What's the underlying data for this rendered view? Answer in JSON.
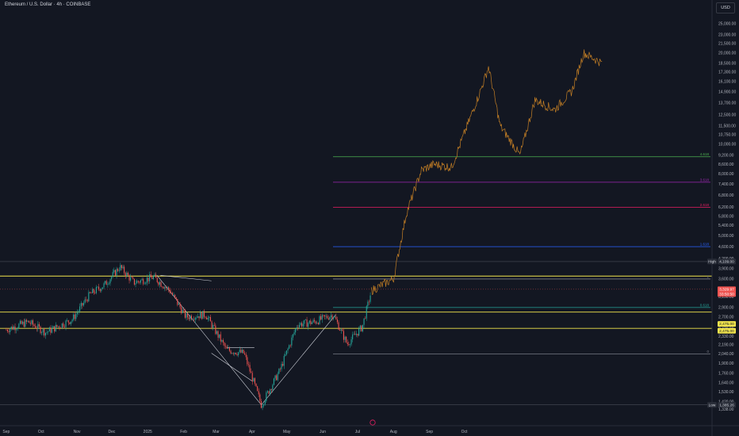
{
  "header": {
    "symbol": "Ethereum / U.S. Dollar · 4h · COINBASE",
    "currency": "USD"
  },
  "colors": {
    "background": "#131722",
    "up": "#26a69a",
    "down": "#ef5350",
    "projection": "#c47f25",
    "trend_line": "#d1d4dc",
    "horizontal": "#f2e54d"
  },
  "chart_data": {
    "type": "candlestick",
    "title": "Ethereum / U.S. Dollar · 4h · COINBASE",
    "y_scale": "log",
    "ylim": [
      1310,
      26500
    ],
    "y_ticks": [
      "25,000.00",
      "23,000.00",
      "21,500.00",
      "20,000.00",
      "18,500.00",
      "17,300.00",
      "16,100.00",
      "14,900.00",
      "13,700.00",
      "12,500.00",
      "11,500.00",
      "10,750.00",
      "10,000.00",
      "9,200.00",
      "8,600.00",
      "8,000.00",
      "7,400.00",
      "6,800.00",
      "6,200.00",
      "5,800.00",
      "5,400.00",
      "5,000.00",
      "4,600.00",
      "4,200.00",
      "3,900.00",
      "3,600.00",
      "3,350.00",
      "3,150.00",
      "2,900.00",
      "2,700.00",
      "2,470.00",
      "2,330.00",
      "2,190.00",
      "2,040.00",
      "1,900.00",
      "1,760.00",
      "1,640.00",
      "1,530.00",
      "1,420.00",
      "1,338.00"
    ],
    "x_ticks": [
      "Sep",
      "Oct",
      "Nov",
      "Dec",
      "2025",
      "Feb",
      "Mar",
      "Apr",
      "May",
      "Jun",
      "Jul",
      "Aug",
      "Sep",
      "Oct"
    ],
    "price_path_keypoints": [
      {
        "date": "2024-09-01",
        "price": 2450
      },
      {
        "date": "2024-09-20",
        "price": 2600
      },
      {
        "date": "2024-10-05",
        "price": 2400
      },
      {
        "date": "2024-10-28",
        "price": 2650
      },
      {
        "date": "2024-11-12",
        "price": 3200
      },
      {
        "date": "2024-11-25",
        "price": 3450
      },
      {
        "date": "2024-12-08",
        "price": 3950
      },
      {
        "date": "2024-12-20",
        "price": 3500
      },
      {
        "date": "2025-01-06",
        "price": 3650
      },
      {
        "date": "2025-01-20",
        "price": 3300
      },
      {
        "date": "2025-02-03",
        "price": 2700
      },
      {
        "date": "2025-02-20",
        "price": 2750
      },
      {
        "date": "2025-03-10",
        "price": 2100
      },
      {
        "date": "2025-03-25",
        "price": 2050
      },
      {
        "date": "2025-04-09",
        "price": 1385
      },
      {
        "date": "2025-04-25",
        "price": 1800
      },
      {
        "date": "2025-05-10",
        "price": 2550
      },
      {
        "date": "2025-05-25",
        "price": 2600
      },
      {
        "date": "2025-06-10",
        "price": 2750
      },
      {
        "date": "2025-06-22",
        "price": 2200
      },
      {
        "date": "2025-07-05",
        "price": 2500
      },
      {
        "date": "2025-07-13",
        "price": 3300
      }
    ],
    "projection_keypoints": [
      {
        "date": "2025-07-13",
        "price": 3300
      },
      {
        "date": "2025-08-01",
        "price": 3600
      },
      {
        "date": "2025-08-12",
        "price": 5900
      },
      {
        "date": "2025-08-25",
        "price": 8200
      },
      {
        "date": "2025-09-05",
        "price": 8600
      },
      {
        "date": "2025-09-20",
        "price": 8400
      },
      {
        "date": "2025-10-15",
        "price": 15000
      },
      {
        "date": "2025-10-22",
        "price": 18000
      },
      {
        "date": "2025-11-01",
        "price": 11500
      },
      {
        "date": "2025-11-12",
        "price": 10000
      },
      {
        "date": "2025-11-18",
        "price": 9200
      },
      {
        "date": "2025-12-01",
        "price": 14000
      },
      {
        "date": "2025-12-18",
        "price": 13000
      },
      {
        "date": "2026-01-02",
        "price": 15000
      },
      {
        "date": "2026-01-12",
        "price": 20000
      },
      {
        "date": "2026-01-28",
        "price": 18500
      }
    ],
    "fibonacci": [
      {
        "level": "0",
        "price": 2040
      },
      {
        "level": "0.618",
        "price": 2900
      },
      {
        "level": "1",
        "price": 3600
      },
      {
        "level": "1.618",
        "price": 4600
      },
      {
        "level": "2.618",
        "price": 6200
      },
      {
        "level": "3.618",
        "price": 7500
      },
      {
        "level": "4.618",
        "price": 9100
      }
    ],
    "horizontal_lines": [
      3680,
      2800,
      2475
    ],
    "price_labels": [
      {
        "name": "high",
        "text": "High",
        "value": "4,109.00"
      },
      {
        "name": "current",
        "value": "3,329.97",
        "sub": "33:50:50"
      },
      {
        "name": "level-yellow-1",
        "value": "2,475.00"
      },
      {
        "name": "level-yellow-2",
        "value": "2,475.00"
      },
      {
        "name": "low",
        "text": "Low",
        "value": "1,385.26"
      }
    ],
    "grid": false
  }
}
